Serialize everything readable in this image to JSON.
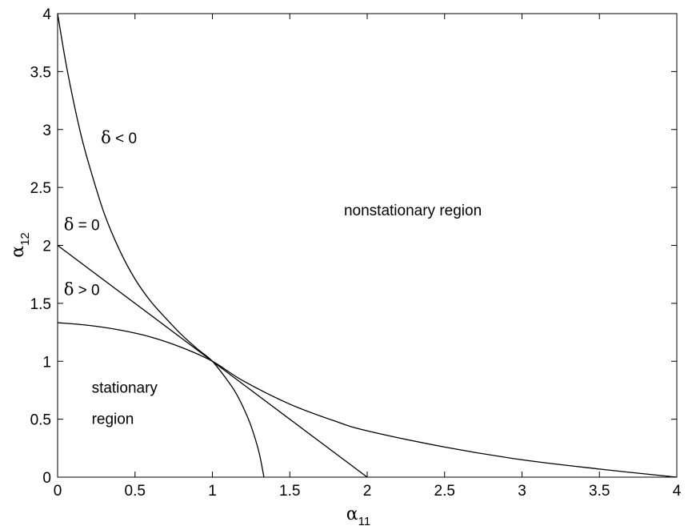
{
  "chart_data": {
    "type": "line",
    "title": "",
    "xlabel": "α11",
    "ylabel": "α12",
    "xlabel_main": "α",
    "xlabel_sub": "11",
    "ylabel_main": "α",
    "ylabel_sub": "12",
    "xlim": [
      0,
      4
    ],
    "ylim": [
      0,
      4
    ],
    "xticks": [
      0,
      0.5,
      1,
      1.5,
      2,
      2.5,
      3,
      3.5,
      4
    ],
    "xtick_labels": [
      "0",
      "0.5",
      "1",
      "1.5",
      "2",
      "2.5",
      "3",
      "3.5",
      "4"
    ],
    "yticks": [
      0,
      0.5,
      1,
      1.5,
      2,
      2.5,
      3,
      3.5,
      4
    ],
    "ytick_labels": [
      "0",
      "0.5",
      "1",
      "1.5",
      "2",
      "2.5",
      "3",
      "3.5",
      "4"
    ],
    "grid": false,
    "series": [
      {
        "x": [
          0,
          0.05,
          0.1,
          0.15,
          0.2,
          0.3,
          0.4,
          0.5,
          0.6,
          0.7,
          0.8,
          0.9,
          1.0,
          1.1,
          1.15,
          1.2,
          1.25,
          1.3,
          1.333
        ],
        "y": [
          4.0,
          3.6,
          3.26,
          2.96,
          2.71,
          2.28,
          1.96,
          1.71,
          1.52,
          1.37,
          1.23,
          1.11,
          1.0,
          0.83,
          0.73,
          0.6,
          0.44,
          0.22,
          0.0
        ]
      },
      {
        "x": [
          0,
          2
        ],
        "y": [
          2,
          0
        ]
      },
      {
        "x": [
          0,
          0.2,
          0.4,
          0.6,
          0.8,
          1.0,
          1.2,
          1.5,
          1.8,
          2.0,
          2.5,
          3.0,
          3.5,
          4.0
        ],
        "y": [
          1.333,
          1.31,
          1.27,
          1.21,
          1.12,
          1.0,
          0.83,
          0.63,
          0.48,
          0.4,
          0.26,
          0.15,
          0.07,
          0.0
        ]
      }
    ],
    "annotations": [
      {
        "sym": "δ",
        "rest": " < 0",
        "x": 0.28,
        "y": 2.88
      },
      {
        "sym": "δ",
        "rest": " = 0",
        "x": 0.04,
        "y": 2.13
      },
      {
        "sym": "δ",
        "rest": " > 0",
        "x": 0.04,
        "y": 1.57
      },
      {
        "text": "nonstationary region",
        "x": 1.85,
        "y": 2.26
      },
      {
        "text": "stationary",
        "x": 0.22,
        "y": 0.73
      },
      {
        "text": "region",
        "x": 0.22,
        "y": 0.46
      }
    ]
  }
}
